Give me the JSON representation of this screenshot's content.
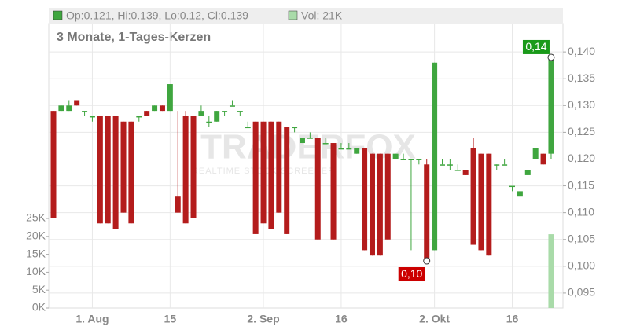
{
  "chart_data": {
    "type": "candlestick",
    "header": {
      "ohlc": "Op:0.121, Hi:0.139, Lo:0.12, Cl:0.139",
      "volume": "Vol: 21K"
    },
    "subtitle": "3 Monate, 1-Tages-Kerzen",
    "watermark": {
      "title": "TRADERFOX",
      "subtitle": "REALTIME STOCK SCREENER"
    },
    "categories": [
      null,
      null,
      null,
      null,
      null,
      "1. Aug",
      null,
      null,
      null,
      null,
      null,
      null,
      null,
      null,
      null,
      "15",
      null,
      null,
      null,
      null,
      null,
      null,
      null,
      null,
      null,
      null,
      null,
      "2. Sep",
      null,
      null,
      null,
      null,
      null,
      null,
      null,
      null,
      null,
      "16",
      null,
      null,
      null,
      null,
      null,
      null,
      null,
      null,
      null,
      null,
      null,
      "2. Okt",
      null,
      null,
      null,
      null,
      null,
      null,
      null,
      null,
      null,
      "16",
      null,
      null,
      null,
      null,
      null
    ],
    "open": [
      0.129,
      0.129,
      0.129,
      0.131,
      0.129,
      0.128,
      0.128,
      0.128,
      0.128,
      0.127,
      0.127,
      0.128,
      0.129,
      0.129,
      0.13,
      0.129,
      0.113,
      0.128,
      0.128,
      0.128,
      0.127,
      0.127,
      0.129,
      0.13,
      0.129,
      0.126,
      0.127,
      0.127,
      0.127,
      0.127,
      0.126,
      0.126,
      0.123,
      0.124,
      0.124,
      0.123,
      0.123,
      0.122,
      0.122,
      0.121,
      0.122,
      0.121,
      0.121,
      0.121,
      0.12,
      0.12,
      0.12,
      0.12,
      0.119,
      0.103,
      0.119,
      0.119,
      0.118,
      0.118,
      0.122,
      0.121,
      0.121,
      0.119,
      0.119,
      0.115,
      0.113,
      0.117,
      0.12,
      0.121,
      0.121
    ],
    "high": [
      0.129,
      0.13,
      0.131,
      0.131,
      0.129,
      0.128,
      0.128,
      0.128,
      0.128,
      0.127,
      0.127,
      0.128,
      0.129,
      0.13,
      0.13,
      0.134,
      0.129,
      0.129,
      0.128,
      0.13,
      0.128,
      0.129,
      0.129,
      0.131,
      0.129,
      0.127,
      0.127,
      0.127,
      0.127,
      0.127,
      0.126,
      0.126,
      0.124,
      0.125,
      0.124,
      0.124,
      0.123,
      0.123,
      0.123,
      0.122,
      0.122,
      0.121,
      0.121,
      0.121,
      0.121,
      0.121,
      0.12,
      0.12,
      0.12,
      0.138,
      0.12,
      0.12,
      0.119,
      0.118,
      0.124,
      0.121,
      0.121,
      0.119,
      0.12,
      0.115,
      0.114,
      0.118,
      0.122,
      0.121,
      0.139
    ],
    "low": [
      0.109,
      0.129,
      0.129,
      0.13,
      0.128,
      0.127,
      0.108,
      0.108,
      0.107,
      0.11,
      0.108,
      0.127,
      0.128,
      0.129,
      0.129,
      0.129,
      0.11,
      0.108,
      0.109,
      0.128,
      0.126,
      0.127,
      0.128,
      0.13,
      0.128,
      0.126,
      0.106,
      0.108,
      0.107,
      0.11,
      0.106,
      0.125,
      0.123,
      0.124,
      0.105,
      0.123,
      0.105,
      0.122,
      0.122,
      0.121,
      0.103,
      0.102,
      0.102,
      0.105,
      0.12,
      0.12,
      0.103,
      0.119,
      0.101,
      0.103,
      0.119,
      0.118,
      0.118,
      0.117,
      0.104,
      0.103,
      0.102,
      0.118,
      0.119,
      0.114,
      0.113,
      0.117,
      0.12,
      0.119,
      0.12
    ],
    "close": [
      0.109,
      0.13,
      0.13,
      0.13,
      0.129,
      0.128,
      0.108,
      0.108,
      0.107,
      0.11,
      0.108,
      0.128,
      0.128,
      0.13,
      0.129,
      0.134,
      0.11,
      0.108,
      0.109,
      0.129,
      0.127,
      0.129,
      0.129,
      0.13,
      0.129,
      0.126,
      0.106,
      0.108,
      0.107,
      0.11,
      0.106,
      0.126,
      0.124,
      0.124,
      0.105,
      0.123,
      0.105,
      0.122,
      0.122,
      0.122,
      0.103,
      0.102,
      0.102,
      0.105,
      0.121,
      0.12,
      0.12,
      0.12,
      0.101,
      0.138,
      0.119,
      0.119,
      0.118,
      0.117,
      0.104,
      0.103,
      0.102,
      0.119,
      0.119,
      0.115,
      0.114,
      0.118,
      0.122,
      0.119,
      0.139
    ],
    "volume": [
      null,
      null,
      null,
      null,
      null,
      null,
      null,
      null,
      null,
      null,
      null,
      null,
      null,
      null,
      null,
      null,
      null,
      null,
      null,
      null,
      null,
      null,
      null,
      null,
      null,
      null,
      null,
      null,
      null,
      null,
      null,
      null,
      null,
      null,
      null,
      null,
      null,
      null,
      null,
      null,
      null,
      null,
      null,
      null,
      null,
      null,
      null,
      null,
      null,
      null,
      null,
      null,
      null,
      null,
      null,
      null,
      null,
      null,
      null,
      null,
      null,
      null,
      null,
      null,
      20600
    ],
    "up_color": "#3fa63f",
    "down_color": "#b41c1c",
    "volume_color": "#a9dba9",
    "annotations": [
      {
        "label": "0,14",
        "value": 0.139,
        "color": "#1a9a1a"
      },
      {
        "label": "0,10",
        "value": 0.101,
        "color": "#cc0000"
      }
    ],
    "ylim": [
      0.0922,
      0.1453
    ],
    "yticks": [
      {
        "value": 0.095,
        "label": "0,095"
      },
      {
        "value": 0.1,
        "label": "0,100"
      },
      {
        "value": 0.105,
        "label": "0,105"
      },
      {
        "value": 0.11,
        "label": "0,110"
      },
      {
        "value": 0.115,
        "label": "0,115"
      },
      {
        "value": 0.12,
        "label": "0,120"
      },
      {
        "value": 0.125,
        "label": "0,125"
      },
      {
        "value": 0.13,
        "label": "0,130"
      },
      {
        "value": 0.135,
        "label": "0,135"
      },
      {
        "value": 0.14,
        "label": "0,140"
      }
    ],
    "y2lim": [
      0,
      79400
    ],
    "y2ticks": [
      {
        "value": 0,
        "label": "0K"
      },
      {
        "value": 5000,
        "label": "5K"
      },
      {
        "value": 10000,
        "label": "10K"
      },
      {
        "value": 15000,
        "label": "15K"
      },
      {
        "value": 20000,
        "label": "20K"
      },
      {
        "value": 25000,
        "label": "25K"
      }
    ],
    "grid": true
  }
}
